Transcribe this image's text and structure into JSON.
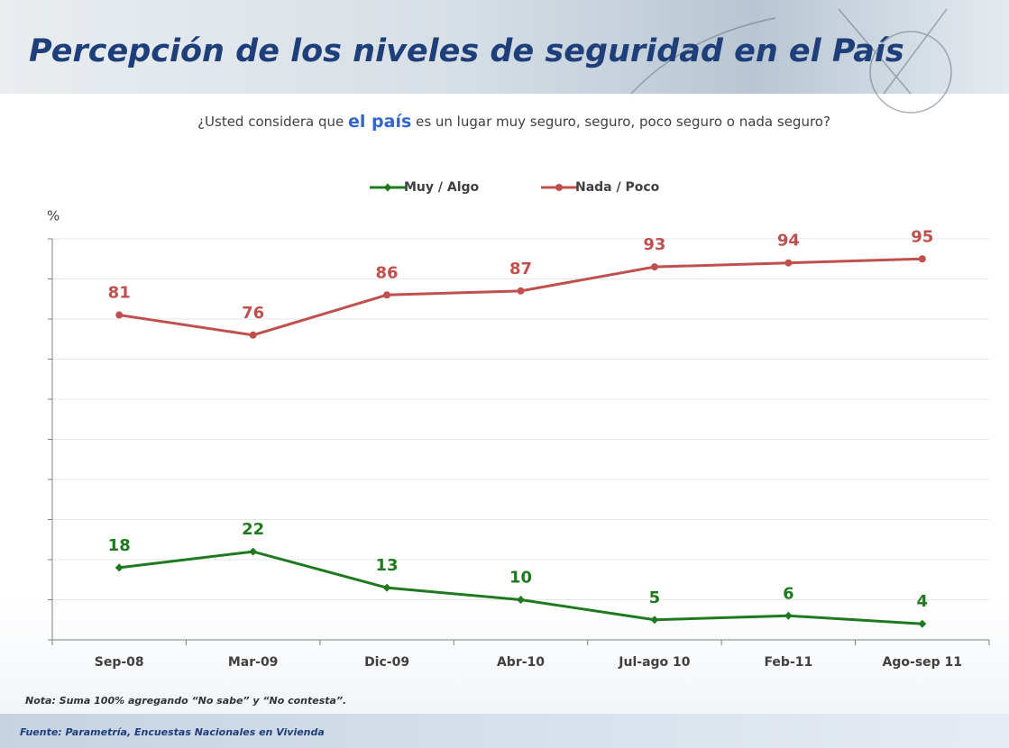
{
  "chart_data": {
    "type": "line",
    "title": "Percepción de los niveles de seguridad en el País",
    "subtitle": [
      "¿Usted considera que",
      "el país",
      "es un lugar muy seguro, seguro, poco seguro o nada seguro?"
    ],
    "ylabel": "%",
    "categories": [
      "Sep-08",
      "Mar-09",
      "Dic-09",
      "Abr-10",
      "Jul-ago 10",
      "Feb-11",
      "Ago-sep 11"
    ],
    "series": [
      {
        "name": "Muy / Algo",
        "color": "#1f7a1f",
        "values": [
          18,
          22,
          13,
          10,
          5,
          6,
          4
        ]
      },
      {
        "name": "Nada / Poco",
        "color": "#c0504d",
        "values": [
          81,
          76,
          86,
          87,
          93,
          94,
          95
        ]
      }
    ],
    "ylim": [
      0,
      100
    ],
    "yticks": [
      0,
      10,
      20,
      30,
      40,
      50,
      60,
      70,
      80,
      90,
      100
    ],
    "grid": true,
    "note": "Nota: Suma 100% agregando “No sabe” y “No contesta”.",
    "source": "Fuente: Parametría, Encuestas Nacionales en Vivienda"
  }
}
